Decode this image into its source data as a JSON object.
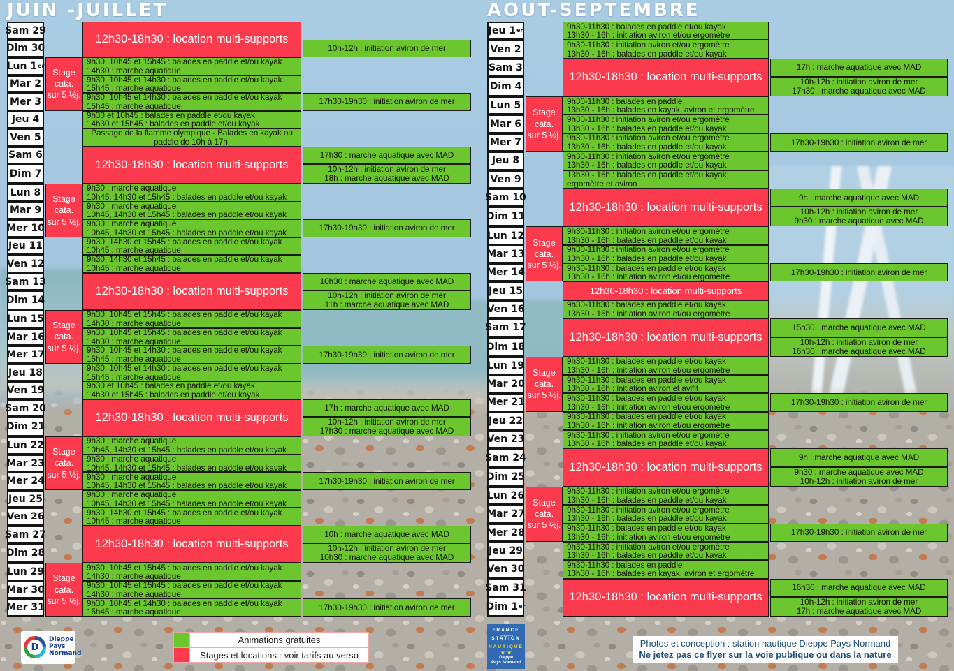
{
  "colors": {
    "green": "#6cc72e",
    "red": "#fb3b4d",
    "sky": "#a3c6de",
    "footer_blue": "#1f4e79",
    "badge_blue": "#2f6ab2"
  },
  "months": [
    {
      "title": "JUIN -JUILLET",
      "days": [
        "Sam 29",
        "Dim 30",
        {
          "t": "Lun 1",
          "sup": "er"
        },
        "Mar 2",
        "Mer 3",
        "Jeu 4",
        "Ven 5",
        "Sam 6",
        "Dim 7",
        "Lun 8",
        "Mar 9",
        "Mer 10",
        "Jeu 11",
        "Ven 12",
        "Sam 13",
        "Dim 14",
        "Lun 15",
        "Mar 16",
        "Mer 17",
        "Jeu 18",
        "Ven 19",
        "Sam 20",
        "Dim 21",
        "Lun 22",
        "Mar 23",
        "Mer 24",
        "Jeu 25",
        "Ven 26",
        "Sam 27",
        "Dim 28",
        "Lun 29",
        "Mar 30",
        "Mer 31"
      ],
      "stage_label": [
        "Stage",
        "cata.",
        "sur 5 ½j."
      ],
      "stages": [
        {
          "row": 3,
          "span": 3
        },
        {
          "row": 10,
          "span": 3
        },
        {
          "row": 17,
          "span": 3
        },
        {
          "row": 24,
          "span": 3
        },
        {
          "row": 31,
          "span": 3
        }
      ],
      "cells": [
        {
          "row": 1,
          "span": 2,
          "type": "red",
          "lines": [
            "12h30-18h30 : location multi-supports"
          ]
        },
        {
          "row": 3,
          "type": "green",
          "lines": [
            "9h30, 10h45 et 15h45 : balades en paddle et/ou kayak",
            "14h30 : marche aquatique"
          ]
        },
        {
          "row": 4,
          "type": "green",
          "lines": [
            "9h30, 10h45 et 14h30 : balades en paddle et/ou kayak",
            "15h45 : marche aquatique"
          ]
        },
        {
          "row": 5,
          "type": "green",
          "lines": [
            "9h30, 10h45 et 14h30 : balades en paddle et/ou kayak",
            "15h45 : marche aquatique"
          ]
        },
        {
          "row": 6,
          "type": "green",
          "lines": [
            "9h30 et 10h45 : balades en paddle et/ou kayak",
            "14h30 et 15h45 : balades en paddle et/ou kayak"
          ]
        },
        {
          "row": 7,
          "type": "green",
          "center": true,
          "lines": [
            "Passage de la flamme olympique - Balades en kayak ou",
            "paddle de 10h à 17h."
          ]
        },
        {
          "row": 8,
          "span": 2,
          "type": "red",
          "lines": [
            "12h30-18h30 : location multi-supports"
          ]
        },
        {
          "row": 10,
          "type": "green",
          "lines": [
            "9h30 : marche aquatique",
            "10h45, 14h30 et 15h45 : balades en paddle et/ou kayak"
          ]
        },
        {
          "row": 11,
          "type": "green",
          "lines": [
            "9h30 : marche aquatique",
            "10h45, 14h30 et 15h45 : balades en paddle et/ou kayak"
          ]
        },
        {
          "row": 12,
          "type": "green",
          "lines": [
            "9h30 : marche aquatique",
            "10h45, 14h30 et 15h45 : balades en paddle et/ou kayak"
          ]
        },
        {
          "row": 13,
          "type": "green",
          "lines": [
            "9h30, 14h30 et 15h45 : balades en paddle et/ou kayak",
            "10h45 : marche aquatique"
          ]
        },
        {
          "row": 14,
          "type": "green",
          "lines": [
            "9h30, 14h30 et 15h45 : balades en paddle et/ou kayak",
            "10h45 : marche aquatique"
          ]
        },
        {
          "row": 15,
          "span": 2,
          "type": "red",
          "lines": [
            "12h30-18h30 : location multi-supports"
          ]
        },
        {
          "row": 17,
          "type": "green",
          "lines": [
            "9h30, 10h45 et 15h45 : balades en paddle et/ou kayak",
            "14h30 : marche aquatique"
          ]
        },
        {
          "row": 18,
          "type": "green",
          "lines": [
            "9h30, 10h45 et 15h45 : balades en paddle et/ou kayak",
            "14h30 : marche aquatique"
          ]
        },
        {
          "row": 19,
          "type": "green",
          "lines": [
            "9h30, 10h45 et 14h30 : balades en paddle et/ou kayak",
            "15h45 : marche aquatique"
          ]
        },
        {
          "row": 20,
          "type": "green",
          "lines": [
            "9h30, 10h45 et 14h30 : balades en paddle et/ou kayak",
            "15h45 : marche aquatique"
          ]
        },
        {
          "row": 21,
          "type": "green",
          "lines": [
            "9h30 et 10h45 : balades en paddle et/ou kayak",
            "14h30 et 15h45 : balades en paddle et/ou kayak"
          ]
        },
        {
          "row": 22,
          "span": 2,
          "type": "red",
          "lines": [
            "12h30-18h30 : location multi-supports"
          ]
        },
        {
          "row": 24,
          "type": "green",
          "lines": [
            "9h30 : marche aquatique",
            "10h45, 14h30 et 15h45 : balades en paddle et/ou kayak"
          ]
        },
        {
          "row": 25,
          "type": "green",
          "lines": [
            "9h30 : marche aquatique",
            "10h45, 14h30 et 15h45 : balades en paddle et/ou kayak"
          ]
        },
        {
          "row": 26,
          "type": "green",
          "lines": [
            "9h30 : marche aquatique",
            "10h45, 14h30 et 15h45 : balades en paddle et/ou kayak"
          ]
        },
        {
          "row": 27,
          "type": "green",
          "lines": [
            "9h30 : marche aquatique",
            "10h45, 14h30 et 15h45 : balades en paddle et/ou kayak"
          ]
        },
        {
          "row": 28,
          "type": "green",
          "lines": [
            "9h30, 14h30 et 15h45 : balades en paddle et/ou kayak",
            "10h45 : marche aquatique"
          ]
        },
        {
          "row": 29,
          "span": 2,
          "type": "red",
          "lines": [
            "12h30-18h30 : location multi-supports"
          ]
        },
        {
          "row": 31,
          "type": "green",
          "lines": [
            "9h30, 10h45 et 15h45 : balades en paddle et/ou kayak",
            "14h30 : marche aquatique"
          ]
        },
        {
          "row": 32,
          "type": "green",
          "lines": [
            "9h30, 10h45 et 15h45 : balades en paddle et/ou kayak",
            "14h30 : marche aquatique"
          ]
        },
        {
          "row": 33,
          "type": "green",
          "lines": [
            "9h30, 10h45 et 14h30 : balades en paddle et/ou kayak",
            "15h45 : marche aquatique"
          ]
        }
      ],
      "extras": [
        {
          "row": 2,
          "lines": [
            "10h-12h : initiation aviron de mer"
          ]
        },
        {
          "row": 5,
          "lines": [
            "17h30-19h30 : initiation aviron de mer"
          ]
        },
        {
          "row": 8,
          "lines": [
            "17h30 : marche aquatique avec MAD"
          ]
        },
        {
          "row": 9,
          "lines": [
            "10h-12h : initiation aviron de mer",
            "18h : marche aquatique avec MAD"
          ]
        },
        {
          "row": 12,
          "lines": [
            "17h30-19h30 : initiation aviron de mer"
          ]
        },
        {
          "row": 15,
          "lines": [
            "10h30 : marche aquatique avec MAD"
          ]
        },
        {
          "row": 16,
          "lines": [
            "10h-12h : initiation aviron de mer",
            "11h : marche aquatique avec MAD"
          ]
        },
        {
          "row": 19,
          "lines": [
            "17h30-19h30 : initiation aviron de mer"
          ]
        },
        {
          "row": 22,
          "lines": [
            "17h : marche aquatique avec MAD"
          ]
        },
        {
          "row": 23,
          "lines": [
            "10h-12h : initiation aviron de mer",
            "17h30 : marche aquatique avec MAD"
          ]
        },
        {
          "row": 26,
          "lines": [
            "17h30-19h30 : initiation aviron de mer"
          ]
        },
        {
          "row": 29,
          "lines": [
            "10h : marche aquatique avec MAD"
          ]
        },
        {
          "row": 30,
          "lines": [
            "10h-12h : initiation aviron de mer",
            "10h30 : marche aquatique avec MAD"
          ]
        },
        {
          "row": 33,
          "lines": [
            "17h30-19h30 : initiation aviron de mer"
          ]
        }
      ]
    },
    {
      "title": "AOUT-SEPTEMBRE",
      "days": [
        {
          "t": "Jeu 1",
          "sup": "er"
        },
        "Ven 2",
        "Sam 3",
        "Dim 4",
        "Lun 5",
        "Mar 6",
        "Mer 7",
        "Jeu 8",
        "Ven 9",
        "Sam 10",
        "Dim 11",
        "Lun 12",
        "Mar 13",
        "Mer 14",
        "Jeu 15",
        "Ven 16",
        "Sam 17",
        "Dim 18",
        "Lun 19",
        "Mar 20",
        "Mer 21",
        "Jeu 22",
        "Ven 23",
        "Sam 24",
        "Dim 25",
        "Lun 26",
        "Mar 27",
        "Mer 28",
        "Jeu 29",
        "Ven 30",
        "Sam 31",
        {
          "t": "Dim 1",
          "sup": "er"
        }
      ],
      "stage_label": [
        "Stage",
        "cata.",
        "sur 5 ½j."
      ],
      "stages": [
        {
          "row": 5,
          "span": 3
        },
        {
          "row": 12,
          "span": 3
        },
        {
          "row": 19,
          "span": 3
        },
        {
          "row": 26,
          "span": 3
        }
      ],
      "cells": [
        {
          "row": 1,
          "type": "green",
          "lines": [
            "9h30-11h30 : balades en paddle et/ou kayak",
            "13h30 - 16h : initiation aviron et/ou ergomètre"
          ]
        },
        {
          "row": 2,
          "type": "green",
          "lines": [
            "9h30-11h30 : initiation aviron et/ou ergomètre",
            "13h30 - 16h : balades en paddle et/ou kayak"
          ]
        },
        {
          "row": 3,
          "span": 2,
          "type": "red",
          "lines": [
            "12h30-18h30 : location multi-supports"
          ]
        },
        {
          "row": 5,
          "type": "green",
          "lines": [
            "9h30-11h30 : balades en paddle",
            "13h30 - 16h : balades en kayak, aviron et ergomètre"
          ]
        },
        {
          "row": 6,
          "type": "green",
          "lines": [
            "9h30-11h30 : initiation aviron et/ou ergomètre",
            "13h30 - 16h : balades en paddle et/ou kayak"
          ]
        },
        {
          "row": 7,
          "type": "green",
          "lines": [
            "9h30-11h30 : initiation aviron et/ou ergomètre",
            "13h30 - 16h : balades en paddle et/ou kayak"
          ]
        },
        {
          "row": 8,
          "type": "green",
          "lines": [
            "9h30-11h30 : initiation aviron et/ou ergomètre",
            "13h30 - 16h : balades en paddle et/ou kayak"
          ]
        },
        {
          "row": 9,
          "type": "green",
          "lines": [
            "13h30 - 16h : balades en paddle et/ou kayak,",
            "ergomètre et aviron"
          ]
        },
        {
          "row": 10,
          "span": 2,
          "type": "red",
          "lines": [
            "12h30-18h30 : location multi-supports"
          ]
        },
        {
          "row": 12,
          "type": "green",
          "lines": [
            "9h30-11h30 : initiation aviron et/ou ergomètre",
            "13h30 - 16h : balades en paddle et/ou kayak"
          ]
        },
        {
          "row": 13,
          "type": "green",
          "lines": [
            "9h30-11h30 : initiation aviron et/ou ergomètre",
            "13h30 - 16h : balades en paddle et/ou kayak"
          ]
        },
        {
          "row": 14,
          "type": "green",
          "lines": [
            "9h30-11h30 : balades en paddle et/ou kayak",
            "13h30 - 16h : initiation aviron et/ou ergomètre"
          ]
        },
        {
          "row": 15,
          "type": "red",
          "small": true,
          "lines": [
            "12h30-18h30 : location multi-supports"
          ]
        },
        {
          "row": 16,
          "type": "green",
          "lines": [
            "9h30-11h30 : balades en paddle et/ou kayak",
            "13h30 - 16h : initiation aviron et/ou ergomètre"
          ]
        },
        {
          "row": 17,
          "span": 2,
          "type": "red",
          "lines": [
            "12h30-18h30 : location multi-supports"
          ]
        },
        {
          "row": 19,
          "type": "green",
          "lines": [
            "9h30-11h30 : balades en paddle et/ou kayak",
            "13h30 - 16h : initiation aviron et/ou ergomètre"
          ]
        },
        {
          "row": 20,
          "type": "green",
          "lines": [
            "9h30-11h30 : balades en paddle et/ou kayak",
            "13h30 - 16h : initiation aviron et avifit"
          ]
        },
        {
          "row": 21,
          "type": "green",
          "lines": [
            "9h30-11h30 : balades en paddle et/ou kayak",
            "13h30 - 16h : initiation aviron et/ou ergomètre"
          ]
        },
        {
          "row": 22,
          "type": "green",
          "lines": [
            "9h30-11h30 : balades en paddle et/ou kayak",
            "13h30 - 16h : initiation aviron et/ou ergomètre"
          ]
        },
        {
          "row": 23,
          "type": "green",
          "lines": [
            "9h30-11h30 : initiation aviron et/ou ergomètre",
            "13h30 - 16h : balades en paddle et/ou kayak"
          ]
        },
        {
          "row": 24,
          "span": 2,
          "type": "red",
          "lines": [
            "12h30-18h30 : location multi-supports"
          ]
        },
        {
          "row": 26,
          "type": "green",
          "lines": [
            "9h30-11h30 : initiation aviron et/ou ergomètre",
            "13h30 - 16h : balades en paddle et/ou kayak"
          ]
        },
        {
          "row": 27,
          "type": "green",
          "lines": [
            "9h30-11h30 : initiation aviron et/ou ergomètre",
            "13h30 - 16h : balades en paddle et/ou kayak"
          ]
        },
        {
          "row": 28,
          "type": "green",
          "lines": [
            "9h30-11h30 : balades en paddle et/ou kayak",
            "13h30 - 16h : initiation aviron et/ou ergomètre"
          ]
        },
        {
          "row": 29,
          "type": "green",
          "lines": [
            "9h30-11h30 : initiation aviron et/ou ergomètre",
            "13h30 - 16h : balades en paddle et/ou kayak"
          ]
        },
        {
          "row": 30,
          "type": "green",
          "lines": [
            "9h30-11h30 : balades en paddle",
            "13h30 - 16h : balades en kayak, aviron et ergomètre"
          ]
        },
        {
          "row": 31,
          "span": 2,
          "type": "red",
          "lines": [
            "12h30-18h30 : location multi-supports"
          ]
        }
      ],
      "extras": [
        {
          "row": 3,
          "lines": [
            "17h : marche aquatique avec MAD"
          ]
        },
        {
          "row": 4,
          "lines": [
            "10h-12h : initiation aviron de mer",
            "17h30 : marche aquatique avec MAD"
          ]
        },
        {
          "row": 7,
          "lines": [
            "17h30-19h30 : initiation aviron de mer"
          ]
        },
        {
          "row": 10,
          "lines": [
            "9h : marche aquatique avec MAD"
          ]
        },
        {
          "row": 11,
          "lines": [
            "10h-12h : initiation aviron de mer",
            "9h30 : marche aquatique avec MAD"
          ]
        },
        {
          "row": 14,
          "lines": [
            "17h30-19h30 : initiation aviron de mer"
          ]
        },
        {
          "row": 17,
          "lines": [
            "15h30 : marche aquatique avec MAD"
          ]
        },
        {
          "row": 18,
          "lines": [
            "10h-12h : initiation aviron de mer",
            "16h30 : marche aquatique avec MAD"
          ]
        },
        {
          "row": 21,
          "lines": [
            "17h30-19h30 : initiation aviron de mer"
          ]
        },
        {
          "row": 24,
          "lines": [
            "9h : marche aquatique avec MAD"
          ]
        },
        {
          "row": 25,
          "lines": [
            "9h30 : marche aquatique avec MAD",
            "10h-12h : initiation aviron de mer"
          ]
        },
        {
          "row": 28,
          "lines": [
            "17h30-19h30 : initiation aviron de mer"
          ]
        },
        {
          "row": 31,
          "lines": [
            "16h30 : marche aquatique avec MAD"
          ]
        },
        {
          "row": 32,
          "lines": [
            "10h-12h : initiation aviron de mer",
            "17h : marche aquatique avec MAD"
          ]
        }
      ]
    }
  ],
  "legend": {
    "items": [
      {
        "swatch": "green",
        "label": "Animations gratuites"
      },
      {
        "swatch": "red",
        "label": "Stages et locations : voir tarifs au verso"
      }
    ]
  },
  "dieppe_logo": {
    "letter": "D",
    "line1": "Dieppe",
    "line2": "Pays",
    "line3": "Normand"
  },
  "badge": {
    "line1": "FRANCE",
    "line2": "STATION",
    "line3": "NAUTIQUE",
    "stars": "★ ★",
    "wave": "﹏﹏﹏",
    "brand1": "Dieppe",
    "brand2": "Pays Normand"
  },
  "footer": {
    "line1": "Photos et conception : station nautique Dieppe Pays Normand",
    "line2": "Ne jetez pas ce flyer sur la voie publique ou dans la nature"
  }
}
